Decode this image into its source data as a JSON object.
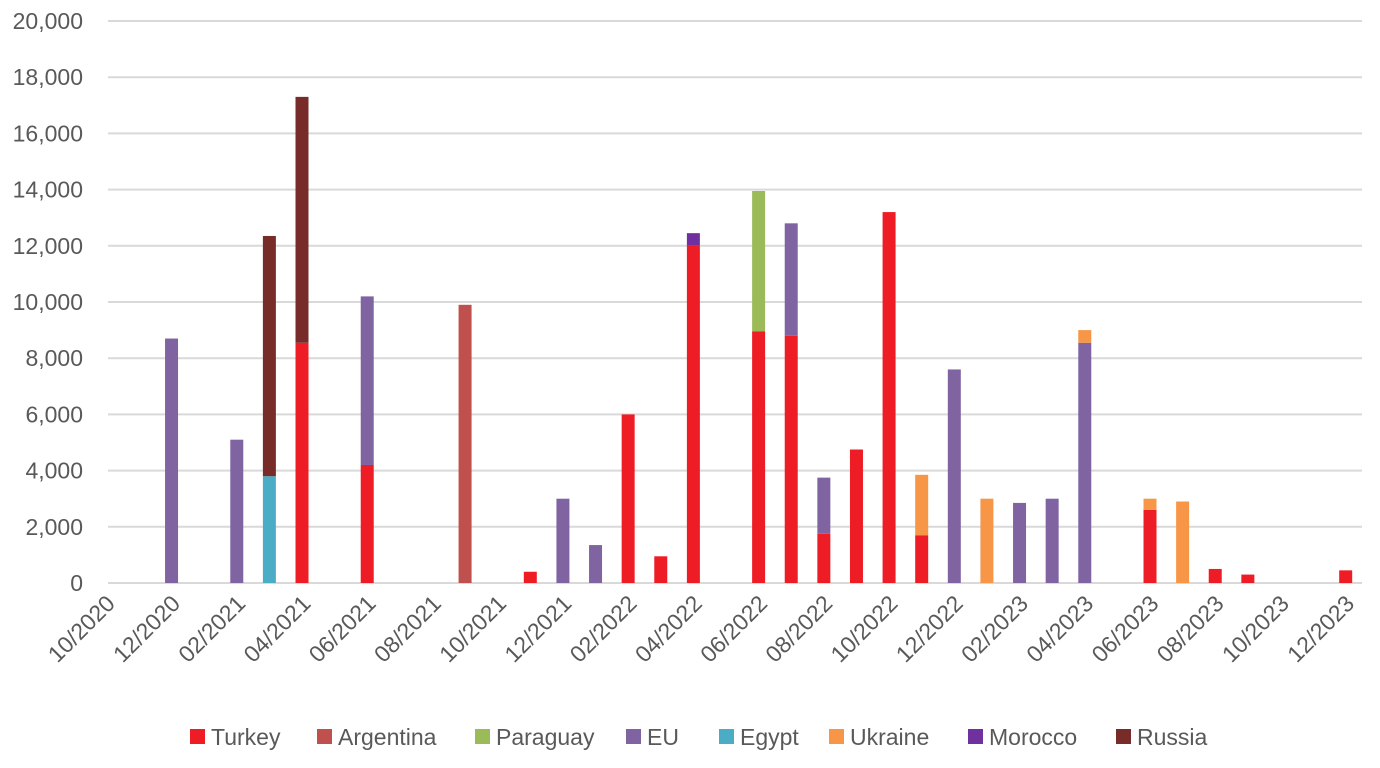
{
  "chart_data": {
    "type": "bar",
    "stacked": true,
    "title": "",
    "xlabel": "",
    "ylabel": "",
    "ylim": [
      0,
      20000
    ],
    "y_ticks": [
      "0",
      "2,000",
      "4,000",
      "6,000",
      "8,000",
      "10,000",
      "12,000",
      "14,000",
      "16,000",
      "18,000",
      "20,000"
    ],
    "grid": true,
    "legend_position": "bottom",
    "x_tick_labels": [
      "10/2020",
      "12/2020",
      "02/2021",
      "04/2021",
      "06/2021",
      "08/2021",
      "10/2021",
      "12/2021",
      "02/2022",
      "04/2022",
      "06/2022",
      "08/2022",
      "10/2022",
      "12/2022",
      "02/2023",
      "04/2023",
      "06/2023",
      "08/2023",
      "10/2023",
      "12/2023"
    ],
    "categories": [
      "10/2020",
      "11/2020",
      "12/2020",
      "01/2021",
      "02/2021",
      "03/2021",
      "04/2021",
      "05/2021",
      "06/2021",
      "07/2021",
      "08/2021",
      "09/2021",
      "10/2021",
      "11/2021",
      "12/2021",
      "01/2022",
      "02/2022",
      "03/2022",
      "04/2022",
      "05/2022",
      "06/2022",
      "07/2022",
      "08/2022",
      "09/2022",
      "10/2022",
      "11/2022",
      "12/2022",
      "01/2023",
      "02/2023",
      "03/2023",
      "04/2023",
      "05/2023",
      "06/2023",
      "07/2023",
      "08/2023",
      "09/2023",
      "10/2023",
      "11/2023",
      "12/2023"
    ],
    "series": [
      {
        "name": "Turkey",
        "color": "#ee1c25",
        "values": [
          0,
          0,
          0,
          0,
          0,
          0,
          8550,
          0,
          4200,
          0,
          0,
          0,
          0,
          400,
          0,
          0,
          6000,
          950,
          12000,
          0,
          8950,
          8800,
          1750,
          4750,
          13200,
          1700,
          0,
          0,
          0,
          0,
          0,
          0,
          2600,
          0,
          500,
          300,
          0,
          0,
          450
        ]
      },
      {
        "name": "Argentina",
        "color": "#c0504d",
        "values": [
          0,
          0,
          0,
          0,
          0,
          0,
          0,
          0,
          0,
          0,
          0,
          9900,
          0,
          0,
          0,
          0,
          0,
          0,
          0,
          0,
          0,
          0,
          0,
          0,
          0,
          0,
          0,
          0,
          0,
          0,
          0,
          0,
          0,
          0,
          0,
          0,
          0,
          0,
          0
        ]
      },
      {
        "name": "Paraguay",
        "color": "#9bbb59",
        "values": [
          0,
          0,
          0,
          0,
          0,
          0,
          0,
          0,
          0,
          0,
          0,
          0,
          0,
          0,
          0,
          0,
          0,
          0,
          0,
          0,
          5000,
          0,
          0,
          0,
          0,
          0,
          0,
          0,
          0,
          0,
          0,
          0,
          0,
          0,
          0,
          0,
          0,
          0,
          0
        ]
      },
      {
        "name": "EU",
        "color": "#8064a2",
        "values": [
          0,
          0,
          8700,
          0,
          5100,
          0,
          0,
          0,
          6000,
          0,
          0,
          0,
          0,
          0,
          3000,
          1350,
          0,
          0,
          0,
          0,
          0,
          4000,
          2000,
          0,
          0,
          0,
          7600,
          0,
          2850,
          3000,
          8550,
          0,
          0,
          0,
          0,
          0,
          0,
          0,
          0
        ]
      },
      {
        "name": "Egypt",
        "color": "#4bacc6",
        "values": [
          0,
          0,
          0,
          0,
          0,
          3800,
          0,
          0,
          0,
          0,
          0,
          0,
          0,
          0,
          0,
          0,
          0,
          0,
          0,
          0,
          0,
          0,
          0,
          0,
          0,
          0,
          0,
          0,
          0,
          0,
          0,
          0,
          0,
          0,
          0,
          0,
          0,
          0,
          0
        ]
      },
      {
        "name": "Ukraine",
        "color": "#f79646",
        "values": [
          0,
          0,
          0,
          0,
          0,
          0,
          0,
          0,
          0,
          0,
          0,
          0,
          0,
          0,
          0,
          0,
          0,
          0,
          0,
          0,
          0,
          0,
          0,
          0,
          0,
          2150,
          0,
          3000,
          0,
          0,
          450,
          0,
          400,
          2900,
          0,
          0,
          0,
          0,
          0
        ]
      },
      {
        "name": "Morocco",
        "color": "#7030a0",
        "values": [
          0,
          0,
          0,
          0,
          0,
          0,
          0,
          0,
          0,
          0,
          0,
          0,
          0,
          0,
          0,
          0,
          0,
          0,
          450,
          0,
          0,
          0,
          0,
          0,
          0,
          0,
          0,
          0,
          0,
          0,
          0,
          0,
          0,
          0,
          0,
          0,
          0,
          0,
          0
        ]
      },
      {
        "name": "Russia",
        "color": "#772c2a",
        "values": [
          0,
          0,
          0,
          0,
          0,
          8550,
          8750,
          0,
          0,
          0,
          0,
          0,
          0,
          0,
          0,
          0,
          0,
          0,
          0,
          0,
          0,
          0,
          0,
          0,
          0,
          0,
          0,
          0,
          0,
          0,
          0,
          0,
          0,
          0,
          0,
          0,
          0,
          0,
          0
        ]
      }
    ]
  }
}
